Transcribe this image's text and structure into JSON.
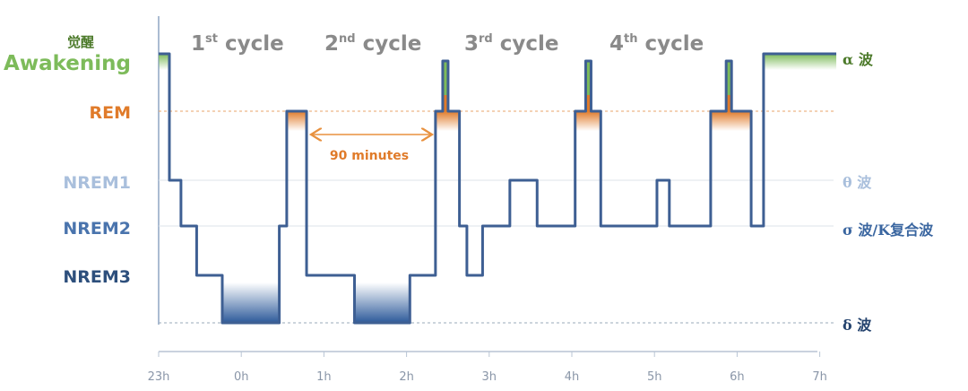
{
  "chart_data": {
    "type": "line",
    "title": "",
    "xlabel": "",
    "ylabel": "",
    "x_ticks": [
      "23h",
      "0h",
      "1h",
      "2h",
      "3h",
      "4h",
      "5h",
      "6h",
      "7h"
    ],
    "x_range_hours": [
      23,
      31
    ],
    "stages": [
      {
        "key": "wake",
        "label": "Awakening",
        "cn_label": "觉醒",
        "wave": "α 波",
        "color": "#7dbb5a"
      },
      {
        "key": "rem",
        "label": "REM",
        "wave": "",
        "color": "#e07b2a"
      },
      {
        "key": "n1",
        "label": "NREM1",
        "wave": "θ 波",
        "color": "#9bb5d6"
      },
      {
        "key": "n2",
        "label": "NREM2",
        "wave": "σ 波/K复合波",
        "color": "#4a74ad"
      },
      {
        "key": "n3",
        "label": "NREM3",
        "wave": "",
        "color": "#2d4f7c"
      },
      {
        "key": "deep",
        "label": "",
        "wave": "δ 波",
        "color": "#2d4f7c"
      }
    ],
    "cycles": [
      "1st cycle",
      "2nd cycle",
      "3rd cycle",
      "4th cycle"
    ],
    "cycle_sup": [
      "st",
      "nd",
      "rd",
      "th"
    ],
    "annotation": "90 minutes",
    "hypnogram": [
      [
        23.0,
        23.13,
        "wake"
      ],
      [
        23.13,
        23.27,
        "n1"
      ],
      [
        23.27,
        23.46,
        "n2"
      ],
      [
        23.46,
        23.77,
        "n3"
      ],
      [
        23.77,
        24.46,
        "deep"
      ],
      [
        24.46,
        24.55,
        "n2"
      ],
      [
        24.55,
        24.79,
        "rem"
      ],
      [
        24.79,
        25.37,
        "n3"
      ],
      [
        25.37,
        26.04,
        "deep"
      ],
      [
        26.04,
        26.35,
        "n3"
      ],
      [
        26.35,
        26.64,
        "rem"
      ],
      [
        26.64,
        26.73,
        "n2"
      ],
      [
        26.73,
        26.92,
        "n3"
      ],
      [
        26.92,
        27.25,
        "n2"
      ],
      [
        27.25,
        27.58,
        "n1"
      ],
      [
        27.58,
        28.04,
        "n2"
      ],
      [
        28.04,
        28.35,
        "rem"
      ],
      [
        28.35,
        29.03,
        "n2"
      ],
      [
        29.03,
        29.18,
        "n1"
      ],
      [
        29.18,
        29.68,
        "n2"
      ],
      [
        29.68,
        30.17,
        "rem"
      ],
      [
        30.17,
        30.32,
        "n2"
      ],
      [
        30.32,
        31.2,
        "wake"
      ]
    ],
    "brief_awakenings": [
      26.47,
      28.2,
      29.9
    ],
    "line_color": "#3e5f93"
  }
}
